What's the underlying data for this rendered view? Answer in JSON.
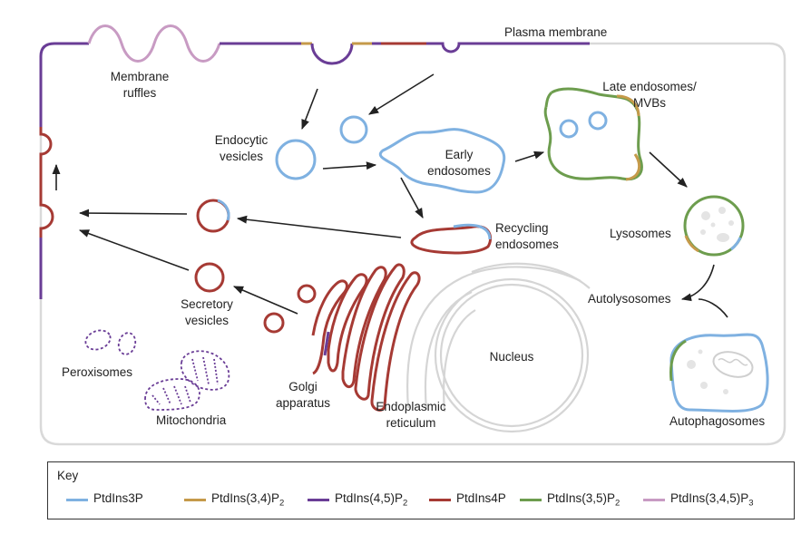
{
  "labels": {
    "plasma_membrane": "Plasma membrane",
    "membrane_ruffles_1": "Membrane",
    "membrane_ruffles_2": "ruffles",
    "endocytic_1": "Endocytic",
    "endocytic_2": "vesicles",
    "early_1": "Early",
    "early_2": "endosomes",
    "late_1": "Late endosomes/",
    "late_2": "MVBs",
    "recycling_1": "Recycling",
    "recycling_2": "endosomes",
    "lysosomes": "Lysosomes",
    "autolysosomes": "Autolysosomes",
    "autophagosomes": "Autophagosomes",
    "secretory_1": "Secretory",
    "secretory_2": "vesicles",
    "peroxisomes": "Peroxisomes",
    "mitochondria": "Mitochondria",
    "golgi_1": "Golgi",
    "golgi_2": "apparatus",
    "er_1": "Endoplasmic",
    "er_2": "reticulum",
    "nucleus": "Nucleus"
  },
  "key": {
    "title": "Key",
    "items": [
      {
        "base": "PtdIns3P",
        "sub": "",
        "color": "#7fb1e1"
      },
      {
        "base": "PtdIns(3,4)P",
        "sub": "2",
        "color": "#c59a4a"
      },
      {
        "base": "PtdIns(4,5)P",
        "sub": "2",
        "color": "#6a3d96"
      },
      {
        "base": "PtdIns4P",
        "sub": "",
        "color": "#a63a34"
      },
      {
        "base": "PtdIns(3,5)P",
        "sub": "2",
        "color": "#6d9d4e"
      },
      {
        "base": "PtdIns(3,4,5)P",
        "sub": "3",
        "color": "#c89bc3"
      }
    ]
  },
  "colors": {
    "ptdins3p": "#7fb1e1",
    "ptdins34p2": "#c59a4a",
    "ptdins45p2": "#6a3d96",
    "ptdins4p": "#a63a34",
    "ptdins35p2": "#6d9d4e",
    "ptdins345p3": "#c89bc3",
    "cell_outline": "#d9d9d9",
    "arrow": "#222222"
  }
}
